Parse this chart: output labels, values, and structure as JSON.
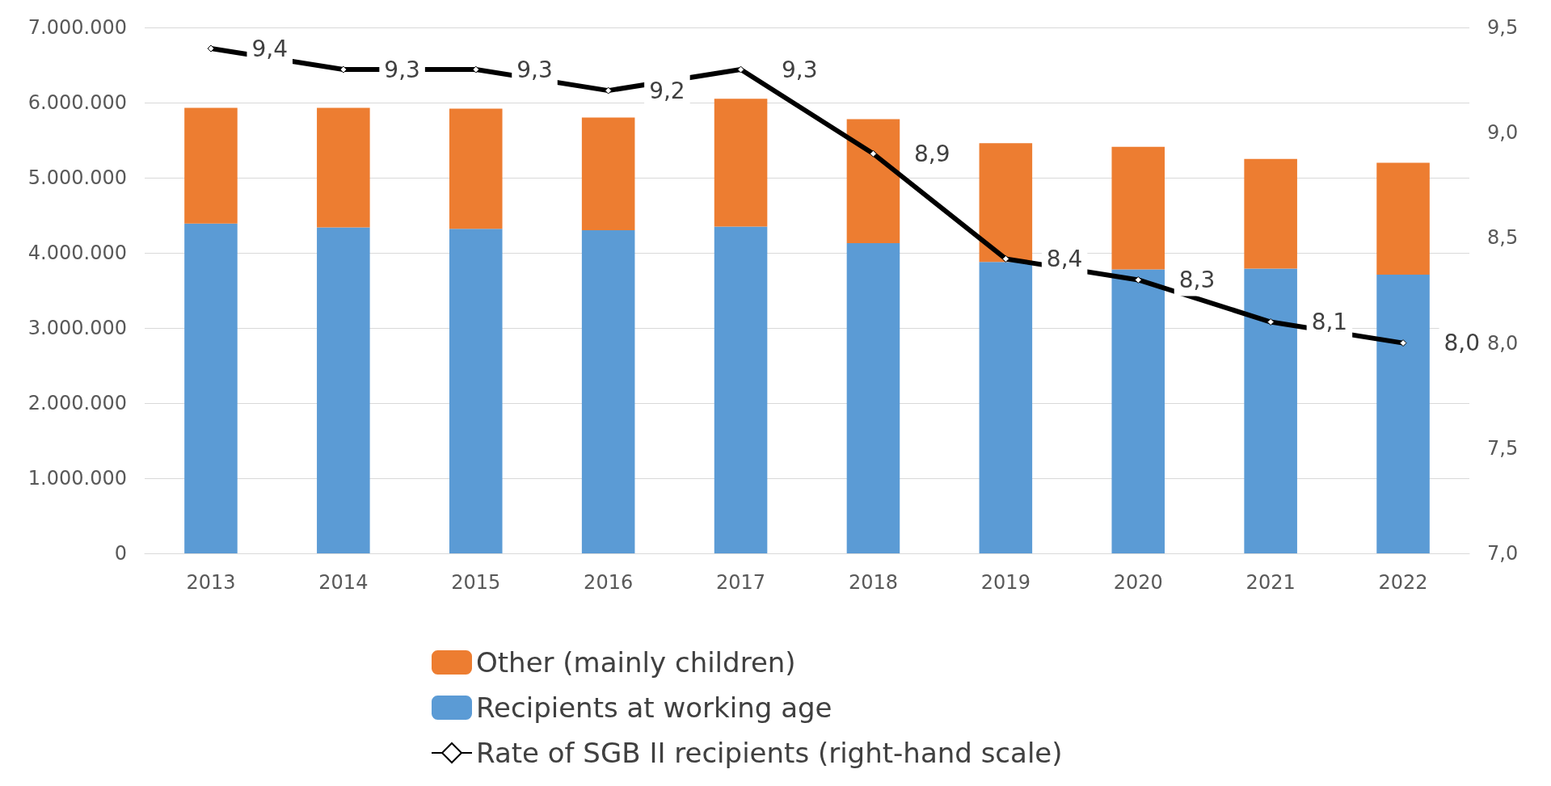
{
  "chart_data": {
    "type": "bar",
    "stacked": true,
    "categories": [
      "2013",
      "2014",
      "2015",
      "2016",
      "2017",
      "2018",
      "2019",
      "2020",
      "2021",
      "2022"
    ],
    "series": [
      {
        "name": "Recipients at working age",
        "color": "#5b9bd5",
        "values": [
          4390000,
          4340000,
          4320000,
          4300000,
          4350000,
          4130000,
          3880000,
          3780000,
          3790000,
          3710000
        ]
      },
      {
        "name": "Other (mainly children)",
        "color": "#ed7d31",
        "values": [
          1540000,
          1590000,
          1600000,
          1500000,
          1700000,
          1650000,
          1580000,
          1630000,
          1460000,
          1490000
        ]
      },
      {
        "name": "Rate of SGB II recipients (right-hand scale)",
        "type": "line",
        "axis": "y2",
        "color": "#000000",
        "marker": "diamond",
        "values": [
          9.4,
          9.3,
          9.3,
          9.2,
          9.3,
          8.9,
          8.4,
          8.3,
          8.1,
          8.0
        ],
        "value_labels": [
          "9,4",
          "9,3",
          "9,3",
          "9,2",
          "9,3",
          "8,9",
          "8,4",
          "8,3",
          "8,1",
          "8,0"
        ]
      }
    ],
    "ylim": [
      0,
      7000000
    ],
    "yticks": [
      {
        "value": 0,
        "label": "0"
      },
      {
        "value": 1000000,
        "label": "1.000.000"
      },
      {
        "value": 2000000,
        "label": "2.000.000"
      },
      {
        "value": 3000000,
        "label": "3.000.000"
      },
      {
        "value": 4000000,
        "label": "4.000.000"
      },
      {
        "value": 5000000,
        "label": "5.000.000"
      },
      {
        "value": 6000000,
        "label": "6.000.000"
      },
      {
        "value": 7000000,
        "label": "7.000.000"
      }
    ],
    "y2lim": [
      7,
      9.5
    ],
    "y2ticks": [
      {
        "value": 7,
        "label": "7,0"
      },
      {
        "value": 7.5,
        "label": "7,5"
      },
      {
        "value": 8,
        "label": "8,0"
      },
      {
        "value": 8.5,
        "label": "8,5"
      },
      {
        "value": 9,
        "label": "9,0"
      },
      {
        "value": 9.5,
        "label": "9,5"
      }
    ],
    "grid": "y",
    "legend": "bottom"
  }
}
